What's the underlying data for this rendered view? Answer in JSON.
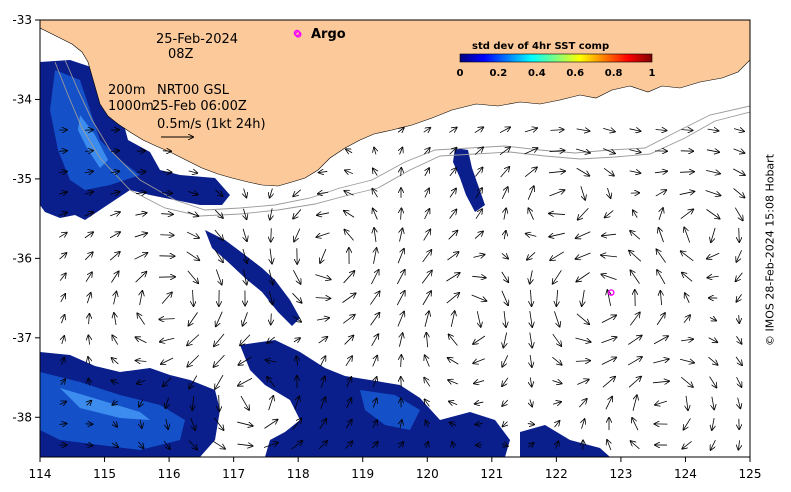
{
  "map": {
    "longitude_ticks": [
      "114",
      "115",
      "116",
      "117",
      "118",
      "119",
      "120",
      "121",
      "122",
      "123",
      "124",
      "125"
    ],
    "latitude_ticks": [
      "-33",
      "-34",
      "-35",
      "-36",
      "-37",
      "-38"
    ],
    "lon_range": [
      114,
      125
    ],
    "lat_range": [
      -38.5,
      -33
    ]
  },
  "header": {
    "date": "25-Feb-2024",
    "hour": "08Z",
    "legend_argo": "Argo",
    "depth_label": "200m",
    "depth_label_2": "1000m",
    "product": "NRT00 GSL",
    "product_time": "25-Feb 06:00Z",
    "scale_text": "0.5m/s (1kt 24h)"
  },
  "colorbar": {
    "title": "std dev of 4hr SST comp",
    "ticks": [
      "0",
      "0.2",
      "0.4",
      "0.6",
      "0.8",
      "1"
    ],
    "range": [
      0,
      1
    ],
    "colors": [
      "#00007f",
      "#0000ff",
      "#007fff",
      "#00ffff",
      "#7fff7f",
      "#ffff00",
      "#ff7f00",
      "#ff0000",
      "#7f0000"
    ]
  },
  "colors": {
    "land": "#fcc99a",
    "argo": "#ff00ff",
    "sst_dark": "#0a1e8c",
    "sst_mid": "#1450c8",
    "sst_light": "#3c8cf0"
  },
  "argo_floats": [
    {
      "lon": 118.0,
      "lat": -33.18
    },
    {
      "lon": 122.85,
      "lat": -36.43
    }
  ],
  "credit": "© IMOS 28-Feb-2024 15:08 Hobart"
}
